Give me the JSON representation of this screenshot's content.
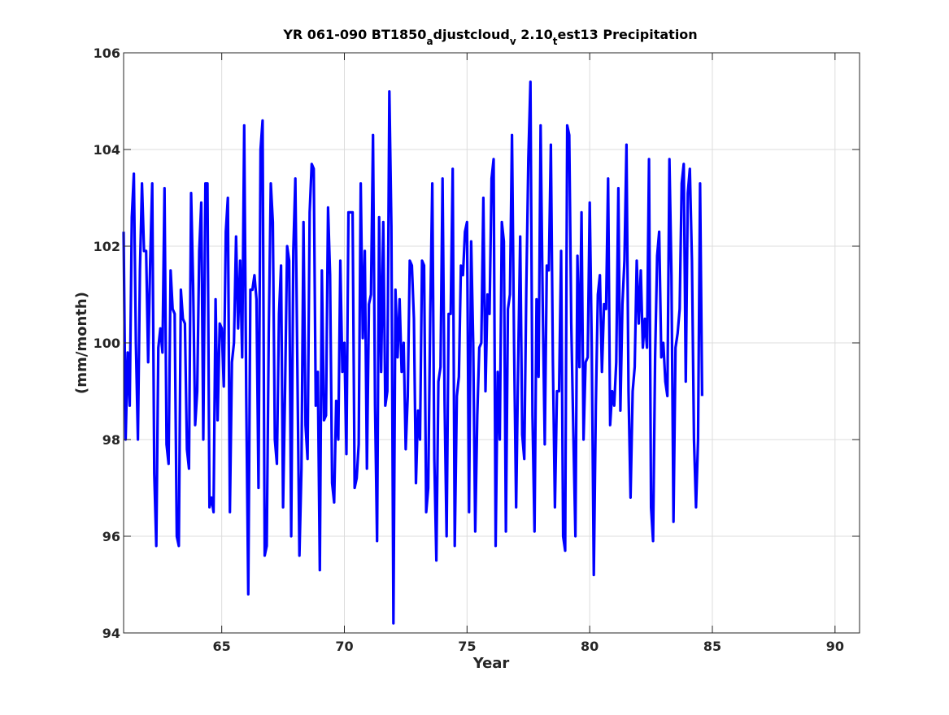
{
  "chart_data": {
    "type": "line",
    "title_parts": {
      "a": "YR 061-090 BT1850",
      "sub1": "a",
      "b": "djustcloud",
      "sub2": "v",
      "c": " 2.10",
      "sub3": "t",
      "d": "est13 Precipitation"
    },
    "xlabel": "Year",
    "ylabel": "(mm/month)",
    "xlim": [
      61,
      91
    ],
    "ylim": [
      94,
      106
    ],
    "xticks": [
      65,
      70,
      75,
      80,
      85,
      90
    ],
    "yticks": [
      94,
      96,
      98,
      100,
      102,
      104,
      106
    ],
    "grid": true,
    "line_color": "#0000ff",
    "series": [
      {
        "x_start": 61,
        "x_step": 0.08333333,
        "values": [
          102.3,
          98.0,
          99.8,
          98.7,
          102.6,
          103.5,
          100.0,
          98.0,
          101.5,
          103.3,
          101.9,
          101.9,
          99.6,
          101.7,
          103.3,
          97.3,
          95.8,
          99.9,
          100.3,
          99.8,
          103.2,
          97.9,
          97.5,
          101.5,
          100.7,
          100.6,
          96.0,
          95.8,
          101.1,
          100.5,
          100.4,
          97.8,
          97.4,
          103.1,
          101.2,
          98.3,
          99.0,
          101.9,
          102.9,
          98.0,
          103.3,
          103.3,
          96.6,
          96.8,
          96.5,
          100.9,
          98.4,
          100.4,
          100.3,
          99.1,
          102.3,
          103.0,
          96.5,
          99.6,
          100.0,
          102.2,
          100.3,
          101.7,
          99.7,
          104.5,
          98.9,
          94.8,
          101.1,
          101.1,
          101.4,
          100.9,
          97.0,
          104.0,
          104.6,
          95.6,
          95.8,
          100.2,
          103.3,
          102.5,
          98.0,
          97.5,
          100.6,
          101.6,
          96.6,
          99.1,
          102.0,
          101.7,
          96.0,
          101.9,
          103.4,
          99.5,
          95.6,
          97.4,
          102.5,
          98.3,
          97.6,
          102.7,
          103.7,
          103.6,
          98.7,
          99.4,
          95.3,
          101.5,
          98.4,
          98.5,
          102.8,
          101.4,
          97.1,
          96.7,
          98.8,
          98.0,
          101.7,
          99.4,
          100.0,
          97.7,
          102.7,
          102.7,
          102.7,
          97.0,
          97.2,
          97.9,
          103.3,
          100.1,
          101.9,
          97.4,
          100.8,
          101.0,
          104.3,
          98.7,
          95.9,
          102.6,
          99.4,
          102.5,
          98.7,
          99.0,
          105.2,
          102.4,
          94.2,
          101.1,
          99.7,
          100.9,
          99.4,
          100.0,
          97.8,
          98.9,
          101.7,
          101.6,
          100.5,
          97.1,
          98.6,
          98.0,
          101.7,
          101.6,
          96.5,
          97.0,
          100.6,
          103.3,
          97.6,
          95.5,
          99.2,
          99.5,
          103.4,
          98.8,
          96.0,
          100.6,
          100.6,
          103.6,
          95.8,
          98.9,
          99.3,
          101.6,
          101.4,
          102.3,
          102.5,
          96.5,
          102.1,
          100.0,
          96.1,
          98.5,
          99.9,
          100.0,
          103.0,
          99.0,
          101.0,
          100.6,
          103.4,
          103.8,
          95.8,
          99.4,
          98.0,
          102.5,
          102.1,
          96.1,
          100.7,
          101.0,
          104.3,
          99.9,
          96.6,
          99.6,
          102.2,
          98.1,
          97.6,
          101.1,
          103.8,
          105.4,
          98.5,
          96.1,
          100.9,
          99.3,
          104.5,
          100.9,
          97.9,
          101.6,
          101.5,
          104.1,
          99.6,
          96.6,
          99.0,
          99.0,
          101.9,
          96.0,
          95.7,
          104.5,
          104.3,
          100.4,
          98.1,
          96.0,
          101.8,
          99.5,
          102.7,
          98.0,
          99.6,
          99.7,
          102.9,
          99.9,
          95.2,
          98.7,
          101.0,
          101.4,
          99.4,
          100.8,
          100.7,
          103.4,
          98.3,
          99.0,
          98.7,
          99.6,
          103.2,
          98.6,
          100.8,
          101.7,
          104.1,
          99.0,
          96.8,
          99.0,
          99.5,
          101.7,
          100.4,
          101.5,
          99.9,
          100.5,
          99.9,
          103.8,
          96.6,
          95.9,
          99.7,
          101.8,
          102.3,
          99.7,
          100.0,
          99.2,
          98.9,
          103.8,
          101.4,
          96.3,
          99.9,
          100.2,
          100.7,
          103.3,
          103.7,
          99.2,
          103.1,
          103.6,
          101.7,
          98.0,
          96.6,
          98.0,
          103.3,
          98.9
        ]
      }
    ]
  }
}
